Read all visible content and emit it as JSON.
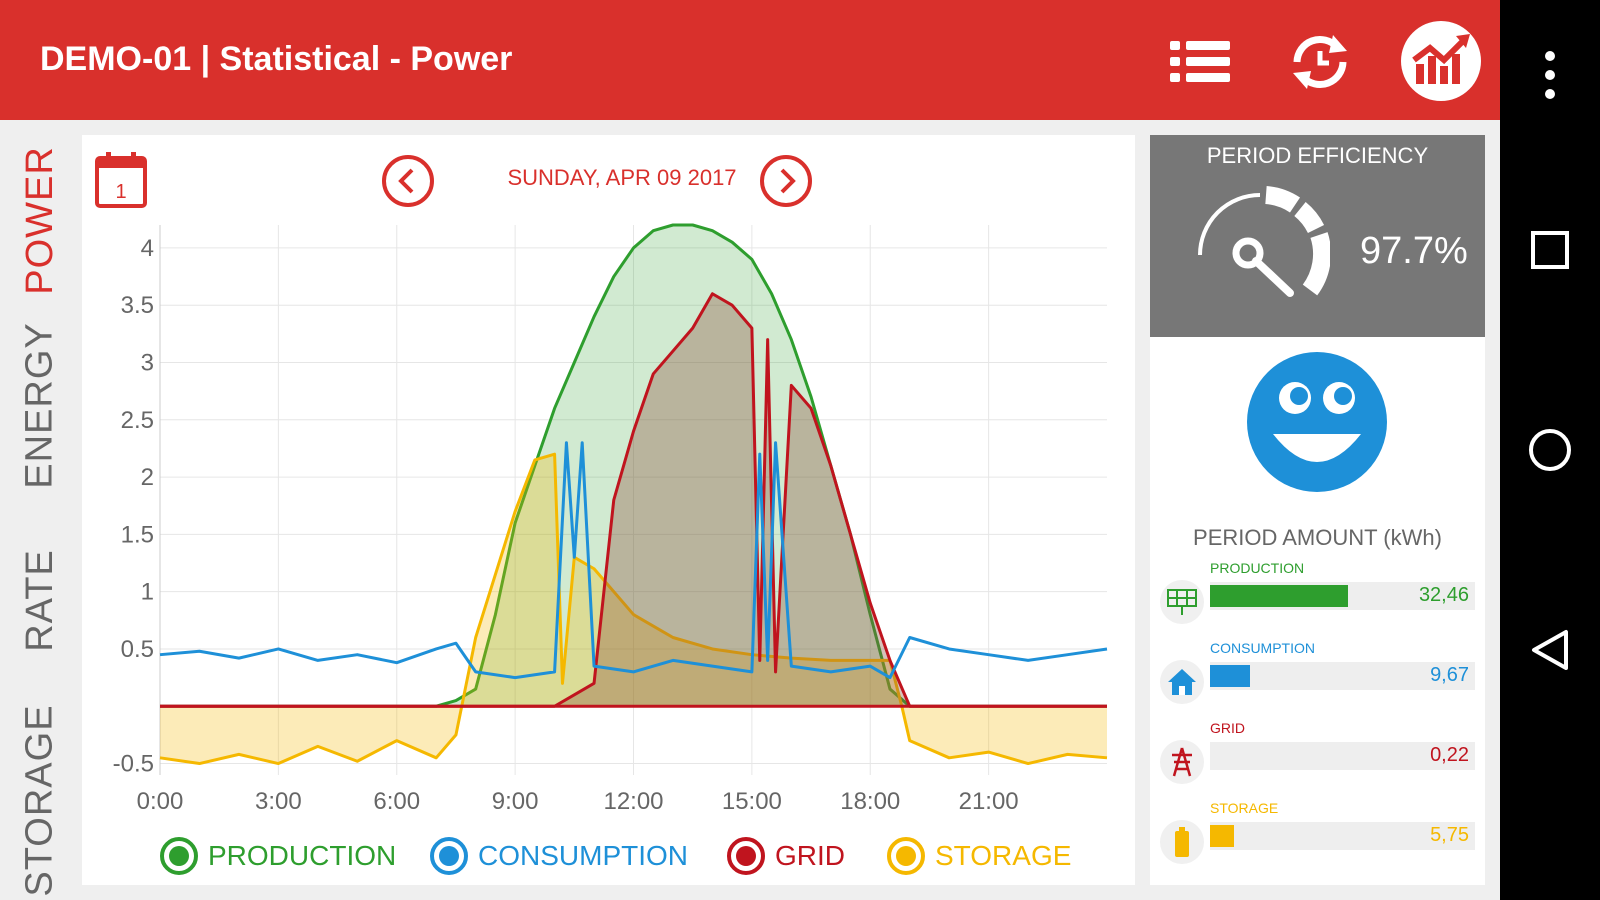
{
  "header": {
    "title": "DEMO-01 | Statistical - Power"
  },
  "icons": {
    "list": "list-icon",
    "refresh": "refresh-clock-icon",
    "chart": "chart-logo-icon",
    "calendar": "calendar-icon",
    "prev": "chevron-left-icon",
    "next": "chevron-right-icon",
    "more": "more-vert-icon"
  },
  "calendar": {
    "day": "1"
  },
  "tabs": [
    {
      "label": "POWER",
      "active": true
    },
    {
      "label": "ENERGY",
      "active": false
    },
    {
      "label": "RATE",
      "active": false
    },
    {
      "label": "STORAGE",
      "active": false
    }
  ],
  "date": "SUNDAY, APR 09 2017",
  "colors": {
    "brand": "#d9302c",
    "production": "#2e9e2e",
    "consumption": "#1e90d8",
    "grid": "#c0141e",
    "storage": "#f5b800",
    "panel": "#777777"
  },
  "chart_data": {
    "type": "area",
    "x_ticks": [
      "0:00",
      "3:00",
      "6:00",
      "9:00",
      "12:00",
      "15:00",
      "18:00",
      "21:00"
    ],
    "y_ticks": [
      "4",
      "3.5",
      "3",
      "2.5",
      "2",
      "1.5",
      "1",
      "0.5",
      "",
      "-0.5"
    ],
    "ylim": [
      -0.6,
      4.2
    ],
    "xlim": [
      0,
      24
    ],
    "grid": true,
    "legend_position": "bottom",
    "series": [
      {
        "name": "PRODUCTION",
        "color": "#2e9e2e",
        "x": [
          0,
          7,
          7.5,
          8,
          8.5,
          9,
          9.5,
          10,
          10.5,
          11,
          11.5,
          12,
          12.5,
          13,
          13.5,
          14,
          14.5,
          15,
          15.5,
          16,
          16.5,
          17,
          17.5,
          18,
          18.5,
          19,
          24
        ],
        "y": [
          0,
          0,
          0.05,
          0.15,
          0.8,
          1.6,
          2.1,
          2.6,
          3.0,
          3.4,
          3.75,
          4.0,
          4.15,
          4.2,
          4.2,
          4.15,
          4.05,
          3.9,
          3.6,
          3.2,
          2.7,
          2.1,
          1.5,
          0.8,
          0.15,
          0.0,
          0
        ]
      },
      {
        "name": "CONSUMPTION",
        "color": "#1e90d8",
        "x": [
          0,
          1,
          2,
          3,
          4,
          5,
          6,
          7,
          7.5,
          8,
          9,
          10,
          10.3,
          10.5,
          10.7,
          11,
          12,
          13,
          14,
          15,
          15.2,
          15.4,
          15.6,
          16,
          17,
          18,
          18.5,
          19,
          20,
          21,
          22,
          23,
          24
        ],
        "y": [
          0.45,
          0.48,
          0.42,
          0.5,
          0.4,
          0.45,
          0.38,
          0.5,
          0.55,
          0.3,
          0.25,
          0.3,
          2.3,
          1.3,
          2.3,
          0.35,
          0.3,
          0.4,
          0.35,
          0.3,
          2.2,
          0.4,
          2.3,
          0.35,
          0.3,
          0.35,
          0.25,
          0.6,
          0.5,
          0.45,
          0.4,
          0.45,
          0.5
        ]
      },
      {
        "name": "GRID",
        "color": "#c0141e",
        "x": [
          0,
          10,
          10.5,
          11,
          11.5,
          12,
          12.5,
          13,
          13.5,
          14,
          14.5,
          15,
          15.2,
          15.4,
          15.6,
          16,
          16.5,
          17,
          17.5,
          18,
          18.5,
          19,
          24
        ],
        "y": [
          0,
          0,
          0.1,
          0.2,
          1.8,
          2.4,
          2.9,
          3.1,
          3.3,
          3.6,
          3.5,
          3.3,
          0.4,
          3.2,
          0.3,
          2.8,
          2.6,
          2.1,
          1.5,
          0.9,
          0.4,
          0.0,
          0
        ]
      },
      {
        "name": "STORAGE",
        "color": "#f5b800",
        "x": [
          0,
          1,
          2,
          3,
          4,
          5,
          6,
          7,
          7.5,
          8,
          9,
          9.5,
          10,
          10.2,
          10.5,
          11,
          12,
          13,
          14,
          15,
          16,
          17,
          18,
          18.5,
          18.8,
          19,
          20,
          21,
          22,
          23,
          24
        ],
        "y": [
          -0.45,
          -0.5,
          -0.42,
          -0.5,
          -0.35,
          -0.48,
          -0.3,
          -0.45,
          -0.25,
          0.6,
          1.7,
          2.15,
          2.2,
          0.2,
          1.3,
          1.2,
          0.8,
          0.6,
          0.5,
          0.45,
          0.42,
          0.4,
          0.4,
          0.4,
          0.0,
          -0.3,
          -0.45,
          -0.4,
          -0.5,
          -0.42,
          -0.45
        ]
      }
    ]
  },
  "efficiency": {
    "title": "PERIOD EFFICIENCY",
    "value": "97.7%",
    "icon": "gauge-icon",
    "value_fraction": 0.977
  },
  "mood": {
    "icon": "smiley-face-icon"
  },
  "amount": {
    "title": "PERIOD AMOUNT (kWh)",
    "items": [
      {
        "label": "PRODUCTION",
        "value": "32,46",
        "color": "#2e9e2e",
        "fraction": 0.52,
        "icon": "solar-panel-icon"
      },
      {
        "label": "CONSUMPTION",
        "value": "9,67",
        "color": "#1e90d8",
        "fraction": 0.15,
        "icon": "house-icon"
      },
      {
        "label": "GRID",
        "value": "0,22",
        "color": "#c0141e",
        "fraction": 0.0,
        "icon": "power-tower-icon"
      },
      {
        "label": "STORAGE",
        "value": "5,75",
        "color": "#f5b800",
        "fraction": 0.09,
        "icon": "battery-icon"
      }
    ]
  },
  "system_nav": {
    "square": "recent-apps-icon",
    "circle": "home-icon",
    "triangle": "back-icon"
  }
}
